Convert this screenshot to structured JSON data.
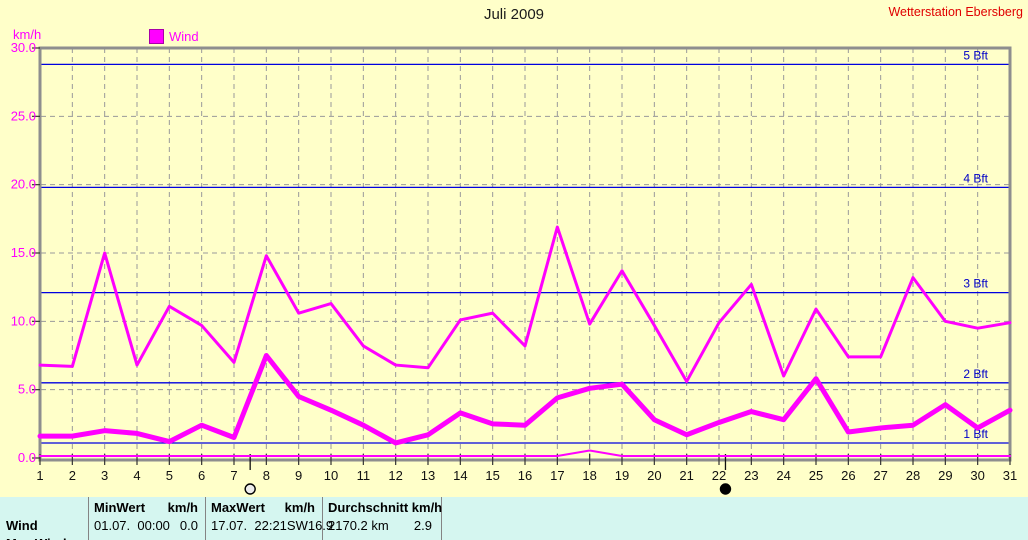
{
  "header": {
    "title": "Juli 2009",
    "station": "Wetterstation Ebersberg"
  },
  "legend": {
    "label": "Wind"
  },
  "colors": {
    "background": "#FFFFC9",
    "accent": "#FF00FF",
    "beaufort_line": "#0000E0",
    "beaufort_label": "#0000C8",
    "frame": "#8E8E8E",
    "grid": "#9A9A9A",
    "station_text": "#E00000",
    "table_background": "#D5F6F0"
  },
  "chart_data": {
    "type": "line",
    "title": "Juli 2009",
    "ylabel": "km/h",
    "ylim": [
      0,
      30
    ],
    "grid": "dashed",
    "legend_position": "top-left",
    "y_ticks": [
      30,
      25,
      20,
      15,
      10,
      5,
      0
    ],
    "y_tick_labels": [
      "30.0",
      "25.0",
      "20.0",
      "15.0",
      "10.0",
      "5.0",
      "0.0"
    ],
    "x_days": [
      1,
      2,
      3,
      4,
      5,
      6,
      7,
      8,
      9,
      10,
      11,
      12,
      13,
      14,
      15,
      16,
      17,
      18,
      19,
      20,
      21,
      22,
      23,
      24,
      25,
      26,
      27,
      28,
      29,
      30,
      31
    ],
    "beaufort_lines": [
      {
        "label": "1 Bft",
        "value": 1.1
      },
      {
        "label": "2 Bft",
        "value": 5.5
      },
      {
        "label": "3 Bft",
        "value": 12.1
      },
      {
        "label": "4 Bft",
        "value": 19.8
      },
      {
        "label": "5 Bft",
        "value": 28.8
      }
    ],
    "series": [
      {
        "name": "wind-min-kmh",
        "stroke_width": 2,
        "values": [
          0,
          0,
          0,
          0,
          0,
          0,
          0,
          0,
          0,
          0,
          0,
          0,
          0,
          0,
          0,
          0,
          0,
          0.4,
          0,
          0,
          0,
          0,
          0,
          0,
          0,
          0,
          0,
          0,
          0,
          0,
          0
        ]
      },
      {
        "name": "wind-max-kmh",
        "stroke_width": 3,
        "values": [
          6.8,
          6.7,
          15.0,
          6.8,
          11.1,
          9.7,
          7.0,
          14.8,
          10.6,
          11.3,
          8.2,
          6.8,
          6.6,
          10.1,
          10.6,
          8.2,
          16.9,
          9.8,
          13.7,
          9.7,
          5.6,
          9.9,
          12.7,
          6.0,
          10.9,
          7.4,
          7.4,
          13.2,
          10.0,
          9.5,
          9.9
        ]
      },
      {
        "name": "wind-avg-kmh",
        "stroke_width": 5,
        "values": [
          1.6,
          1.6,
          2.0,
          1.8,
          1.2,
          2.4,
          1.5,
          7.5,
          4.5,
          3.5,
          2.4,
          1.1,
          1.7,
          3.3,
          2.5,
          2.4,
          4.4,
          5.1,
          5.4,
          2.8,
          1.7,
          2.6,
          3.4,
          2.8,
          5.8,
          1.9,
          2.2,
          2.4,
          3.9,
          2.2,
          3.5
        ]
      }
    ],
    "moon_markers": [
      {
        "day": 7.5,
        "phase": "full"
      },
      {
        "day": 22.2,
        "phase": "new"
      }
    ]
  },
  "table": {
    "header": {
      "col1_label": "MinWert",
      "col1_unit": "km/h",
      "col2_label": "MaxWert",
      "col2_unit": "km/h",
      "col3_label": "Durchschnitt km/h"
    },
    "wind_row": {
      "label": "Wind",
      "min_datetime": "01.07.  00:00",
      "min_value": "0.0",
      "max_datetime": "17.07.  22:21SW",
      "max_value": "16.9",
      "total": "2170.2 km",
      "avg": "2.9"
    },
    "next_row_label": "Max.Wind"
  }
}
